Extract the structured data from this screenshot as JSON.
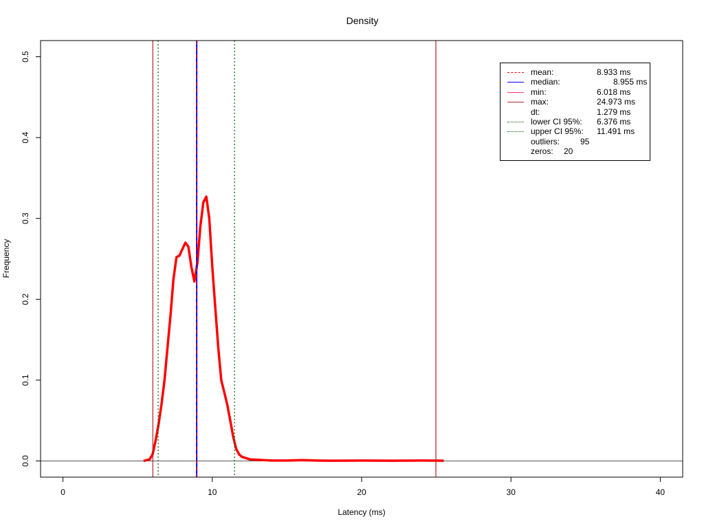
{
  "chart_data": {
    "type": "line",
    "title": "Density",
    "xlabel": "Latency (ms)",
    "ylabel": "Frequency",
    "xlim": [
      -1.5,
      41.5
    ],
    "ylim": [
      -0.02,
      0.52
    ],
    "xticks": [
      0,
      10,
      20,
      30,
      40
    ],
    "yticks": [
      0.0,
      0.1,
      0.2,
      0.3,
      0.4,
      0.5
    ],
    "xtick_labels": [
      "0",
      "10",
      "20",
      "30",
      "40"
    ],
    "ytick_labels": [
      "0.0",
      "0.1",
      "0.2",
      "0.3",
      "0.4",
      "0.5"
    ],
    "series": [
      {
        "color": "#ff0000",
        "x": [
          5.4,
          5.8,
          6.0,
          6.2,
          6.4,
          6.6,
          6.8,
          7.0,
          7.2,
          7.4,
          7.6,
          7.8,
          8.0,
          8.2,
          8.4,
          8.6,
          8.8,
          9.0,
          9.2,
          9.4,
          9.6,
          9.8,
          10.0,
          10.2,
          10.4,
          10.6,
          10.8,
          11.0,
          11.2,
          11.4,
          11.6,
          11.8,
          12.0,
          12.5,
          13.0,
          14.0,
          15.0,
          16.0,
          17.0,
          18.0,
          20.0,
          22.0,
          24.0,
          25.5
        ],
        "y": [
          0.0,
          0.002,
          0.008,
          0.025,
          0.045,
          0.07,
          0.1,
          0.14,
          0.18,
          0.225,
          0.252,
          0.254,
          0.262,
          0.27,
          0.265,
          0.24,
          0.222,
          0.245,
          0.29,
          0.32,
          0.327,
          0.3,
          0.24,
          0.19,
          0.14,
          0.1,
          0.085,
          0.07,
          0.05,
          0.03,
          0.015,
          0.008,
          0.005,
          0.002,
          0.0015,
          0.0005,
          0.0005,
          0.001,
          0.0005,
          0.0003,
          0.0005,
          0.0003,
          0.0005,
          0.0003
        ]
      }
    ],
    "vlines": [
      {
        "name": "min",
        "x": 6.018,
        "color": "#b22222",
        "dash": "solid"
      },
      {
        "name": "lower-ci",
        "x": 6.376,
        "color": "#006400",
        "dash": "dotted"
      },
      {
        "name": "median",
        "x": 8.955,
        "color": "#0000ff",
        "dash": "solid"
      },
      {
        "name": "mean",
        "x": 8.933,
        "color": "#ff0000",
        "dash": "dashed"
      },
      {
        "name": "upper-ci",
        "x": 11.491,
        "color": "#006400",
        "dash": "dotted"
      },
      {
        "name": "max",
        "x": 24.973,
        "color": "#b22222",
        "dash": "solid"
      }
    ],
    "hline_y": 0,
    "legend_position": "top-right",
    "legend": [
      {
        "label": "mean:",
        "value": "8.933 ms",
        "line_color": "#ff0000",
        "dash": "dashed"
      },
      {
        "label": "median:",
        "value": "8.955 ms",
        "line_color": "#0000ff",
        "dash": "solid"
      },
      {
        "label": "min:",
        "value": "6.018 ms",
        "line_color": "#ff3366",
        "dash": "solid"
      },
      {
        "label": "max:",
        "value": "24.973 ms",
        "line_color": "#b22222",
        "dash": "solid"
      },
      {
        "label": "dt:",
        "value": "1.279 ms",
        "line_color": "",
        "dash": "none"
      },
      {
        "label": "lower CI 95%:",
        "value": "6.376 ms",
        "line_color": "#006400",
        "dash": "dotted"
      },
      {
        "label": "upper CI 95%:",
        "value": "11.491 ms",
        "line_color": "#006400",
        "dash": "dotted"
      },
      {
        "label": "outliers:",
        "value": "95",
        "line_color": "",
        "dash": "none"
      },
      {
        "label": "zeros:",
        "value": "20",
        "line_color": "",
        "dash": "none"
      }
    ]
  }
}
